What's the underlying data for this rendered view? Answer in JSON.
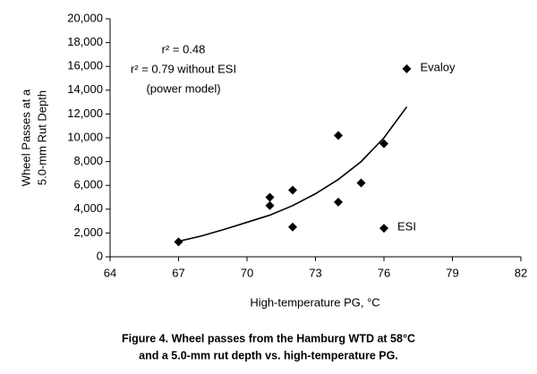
{
  "chart_data": {
    "type": "scatter",
    "x_label": "High-temperature PG, °C",
    "y_label": [
      "Wheel Passes at a",
      "5.0-mm Rut Depth"
    ],
    "caption": [
      "Figure 4.  Wheel passes from the Hamburg WTD at 58°C",
      "and a 5.0-mm rut depth vs. high-temperature PG."
    ],
    "annotations": [
      "r² = 0.48",
      "r² = 0.79 without ESI",
      "(power model)"
    ],
    "xlim": [
      64,
      82
    ],
    "xticks": [
      64,
      67,
      70,
      73,
      76,
      79,
      82
    ],
    "ylim": [
      0,
      20000
    ],
    "yticks": [
      0,
      {
        "value": 2000,
        "label": "2,000"
      },
      {
        "value": 4000,
        "label": "4,000"
      },
      {
        "value": 6000,
        "label": "6,000"
      },
      {
        "value": 8000,
        "label": "8,000"
      },
      {
        "value": 10000,
        "label": "10,000"
      },
      {
        "value": 12000,
        "label": "12,000"
      },
      {
        "value": 14000,
        "label": "14,000"
      },
      {
        "value": 16000,
        "label": "16,000"
      },
      {
        "value": 18000,
        "label": "18,000"
      },
      {
        "value": 20000,
        "label": "20,000"
      }
    ],
    "series": [
      {
        "color": "#000000",
        "x": [
          67,
          71,
          71,
          72,
          72,
          74,
          74,
          75,
          76,
          76,
          77
        ],
        "values": [
          1250,
          5000,
          4300,
          5600,
          2500,
          10200,
          4600,
          6200,
          9500,
          2400,
          15800
        ],
        "point_labels": [
          null,
          null,
          null,
          null,
          null,
          null,
          null,
          null,
          null,
          "ESI",
          "Evaloy"
        ]
      }
    ],
    "trendline": {
      "color": "#000000",
      "x": [
        67,
        68,
        69,
        70,
        71,
        72,
        73,
        74,
        75,
        76,
        77
      ],
      "values": [
        1300,
        1750,
        2300,
        2900,
        3500,
        4300,
        5300,
        6500,
        8000,
        10000,
        12600
      ]
    }
  }
}
